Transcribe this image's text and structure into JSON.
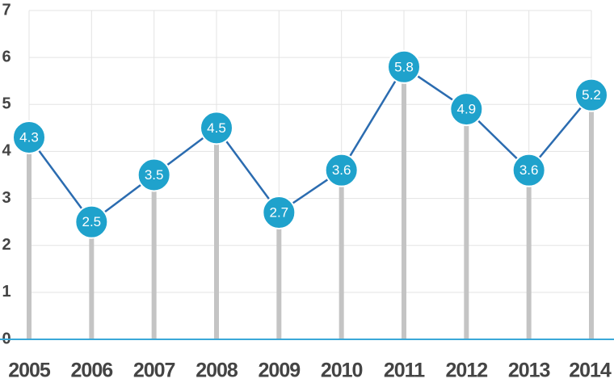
{
  "chart_data": {
    "type": "line",
    "categories": [
      "2005",
      "2006",
      "2007",
      "2008",
      "2009",
      "2010",
      "2011",
      "2012",
      "2013",
      "2014"
    ],
    "values": [
      4.3,
      2.5,
      3.5,
      4.5,
      2.7,
      3.6,
      5.8,
      4.9,
      3.6,
      5.2
    ],
    "color": "#2b6cb0",
    "marker_color": "#1fa2cc",
    "stem_color": "#c4c4c4",
    "ylim": [
      0,
      7
    ],
    "yticks": [
      0,
      1,
      2,
      3,
      4,
      5,
      6,
      7
    ],
    "grid": true
  }
}
